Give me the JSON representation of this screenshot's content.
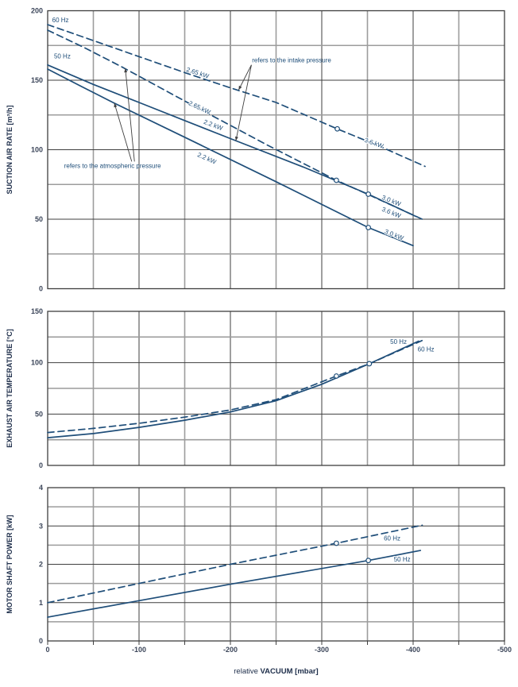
{
  "figure": {
    "x_axis": {
      "label_regular": "relative",
      "label_bold": "VACUUM  [mbar]",
      "min": 0,
      "max": -500,
      "major_ticks": [
        0,
        -100,
        -200,
        -300,
        -400,
        -500
      ],
      "minor_step": 50
    },
    "colors": {
      "curve": "#1f4e79",
      "curve_label_text": "#1f4e79",
      "annotation_text": "#1f4e79",
      "tick_text": "#3b4559",
      "axis_title_text": "#20304c",
      "major_grid": "#3f3f3f",
      "minor_grid": "#9c9c9c",
      "frame": "#3f3f3f",
      "arrow": "#3f3f3f",
      "background": "#ffffff"
    }
  },
  "chart_data": [
    {
      "type": "line",
      "id": "suction-air-rate",
      "ylabel": "SUCTION AIR RATE [m³/h]",
      "xlabel": "relative VACUUM [mbar]",
      "ylim": [
        0,
        200
      ],
      "yticks": [
        0,
        50,
        100,
        150,
        200
      ],
      "y_minor_step": 25,
      "xlim": [
        0,
        -500
      ],
      "grid": true,
      "legend_position": "inline",
      "series": [
        {
          "name": "60 Hz referred to intake pressure",
          "style": "dashed",
          "points": [
            [
              0,
              190
            ],
            [
              -50,
              178.5
            ],
            [
              -100,
              167
            ],
            [
              -150,
              155.5
            ],
            [
              -200,
              144.5
            ],
            [
              -250,
              134
            ],
            [
              -317,
              115
            ],
            [
              -365,
              102
            ],
            [
              -413,
              88
            ]
          ],
          "markers": [
            [
              -317,
              115
            ]
          ]
        },
        {
          "name": "60 Hz referred to atmospheric pressure",
          "style": "dashed",
          "points": [
            [
              0,
              186
            ],
            [
              -40,
              173.5
            ],
            [
              -80,
              160
            ],
            [
              -160,
              131.5
            ],
            [
              -240,
              103.5
            ],
            [
              -316,
              78
            ],
            [
              -350,
              68
            ],
            [
              -410,
              50
            ]
          ],
          "markers": [
            [
              -316,
              78
            ]
          ]
        },
        {
          "name": "50 Hz referred to intake pressure",
          "style": "solid",
          "points": [
            [
              0,
              161
            ],
            [
              -50,
              147
            ],
            [
              -100,
              134
            ],
            [
              -150,
              121
            ],
            [
              -200,
              108
            ],
            [
              -280,
              87.5
            ],
            [
              -351,
              68
            ],
            [
              -403,
              52
            ]
          ],
          "markers": [
            [
              -351,
              68
            ]
          ]
        },
        {
          "name": "50 Hz referred to atmospheric pressure",
          "style": "solid",
          "points": [
            [
              0,
              158
            ],
            [
              -37,
              145.5
            ],
            [
              -73,
              133.5
            ],
            [
              -150,
              109
            ],
            [
              -250,
              77
            ],
            [
              -351,
              44
            ],
            [
              -400,
              31
            ]
          ],
          "markers": [
            [
              -351,
              44
            ]
          ]
        }
      ],
      "curve_labels": [
        {
          "text": "60 Hz",
          "x": -14,
          "y": 193,
          "rotation": 0
        },
        {
          "text": "50 Hz",
          "x": -16,
          "y": 167,
          "rotation": 0
        },
        {
          "text": "2.65 kW",
          "x": -164,
          "y": 155,
          "rotation": 18
        },
        {
          "text": "2.65 kW",
          "x": -166,
          "y": 130,
          "rotation": 25
        },
        {
          "text": "2.2 kW",
          "x": -181,
          "y": 117.5,
          "rotation": 21
        },
        {
          "text": "2.2 kW",
          "x": -174,
          "y": 93.5,
          "rotation": 24
        },
        {
          "text": "3.6 kW",
          "x": -357,
          "y": 104.5,
          "rotation": 20
        },
        {
          "text": "3.0 kW",
          "x": -376,
          "y": 63,
          "rotation": 22
        },
        {
          "text": "3.6 kW",
          "x": -376,
          "y": 54.5,
          "rotation": 22
        },
        {
          "text": "3.0 kW",
          "x": -379,
          "y": 38.5,
          "rotation": 22
        }
      ],
      "annotations": [
        {
          "id": "intake-pressure",
          "text": "refers to the intake pressure",
          "x": -267,
          "y": 164,
          "arrows": [
            {
              "from": [
                -223,
                161
              ],
              "to": [
                -209,
                143
              ]
            },
            {
              "from": [
                -223,
                161
              ],
              "to": [
                -206,
                106.5
              ]
            }
          ]
        },
        {
          "id": "atmospheric-pressure",
          "text": "refers to the atmospheric pressure",
          "x": -71,
          "y": 88,
          "arrows": [
            {
              "from": [
                -95,
                91.5
              ],
              "to": [
                -85,
                158.5
              ]
            },
            {
              "from": [
                -92,
                91.5
              ],
              "to": [
                -73,
                133.5
              ]
            }
          ]
        }
      ]
    },
    {
      "type": "line",
      "id": "exhaust-air-temperature",
      "ylabel": "EXHAUST AIR TEMPERATURE [°C]",
      "xlabel": "relative VACUUM [mbar]",
      "ylim": [
        0,
        150
      ],
      "yticks": [
        0,
        50,
        100,
        150
      ],
      "y_minor_step": 25,
      "xlim": [
        0,
        -500
      ],
      "grid": true,
      "legend_position": "inline",
      "series": [
        {
          "name": "50 Hz",
          "style": "solid",
          "points": [
            [
              0,
              27
            ],
            [
              -50,
              31
            ],
            [
              -100,
              37
            ],
            [
              -150,
              44
            ],
            [
              -200,
              52
            ],
            [
              -250,
              63
            ],
            [
              -300,
              79
            ],
            [
              -352,
              99
            ],
            [
              -406,
              121
            ]
          ],
          "markers": [
            [
              -352,
              99
            ]
          ]
        },
        {
          "name": "60 Hz",
          "style": "dashed",
          "points": [
            [
              0,
              32
            ],
            [
              -50,
              36
            ],
            [
              -100,
              41
            ],
            [
              -150,
              47
            ],
            [
              -200,
              54
            ],
            [
              -250,
              64
            ],
            [
              -316,
              87
            ],
            [
              -352,
              99
            ],
            [
              -411,
              122
            ]
          ],
          "markers": [
            [
              -316,
              87
            ]
          ]
        }
      ],
      "curve_labels": [
        {
          "text": "50 Hz",
          "x": -384,
          "y": 120,
          "rotation": 0
        },
        {
          "text": "60 Hz",
          "x": -414,
          "y": 112.5,
          "rotation": 0
        }
      ],
      "annotations": []
    },
    {
      "type": "line",
      "id": "motor-shaft-power",
      "ylabel": "MOTOR SHAFT POWER [kW]",
      "xlabel": "relative VACUUM [mbar]",
      "ylim": [
        0,
        4
      ],
      "yticks": [
        0,
        1,
        2,
        3,
        4
      ],
      "y_minor_step": 0.5,
      "xlim": [
        0,
        -500
      ],
      "grid": true,
      "legend_position": "inline",
      "series": [
        {
          "name": "60 Hz",
          "style": "dashed",
          "points": [
            [
              0,
              1.0
            ],
            [
              -100,
              1.5
            ],
            [
              -200,
              2.0
            ],
            [
              -316,
              2.55
            ],
            [
              -410,
              3.02
            ]
          ],
          "markers": [
            [
              -316,
              2.55
            ]
          ]
        },
        {
          "name": "50 Hz",
          "style": "solid",
          "points": [
            [
              0,
              0.62
            ],
            [
              -100,
              1.05
            ],
            [
              -200,
              1.48
            ],
            [
              -351,
              2.1
            ],
            [
              -408,
              2.36
            ]
          ],
          "markers": [
            [
              -351,
              2.1
            ]
          ]
        }
      ],
      "curve_labels": [
        {
          "text": "60 Hz",
          "x": -377,
          "y": 2.67,
          "rotation": 0
        },
        {
          "text": "50 Hz",
          "x": -388,
          "y": 2.12,
          "rotation": 0
        }
      ],
      "annotations": []
    }
  ]
}
